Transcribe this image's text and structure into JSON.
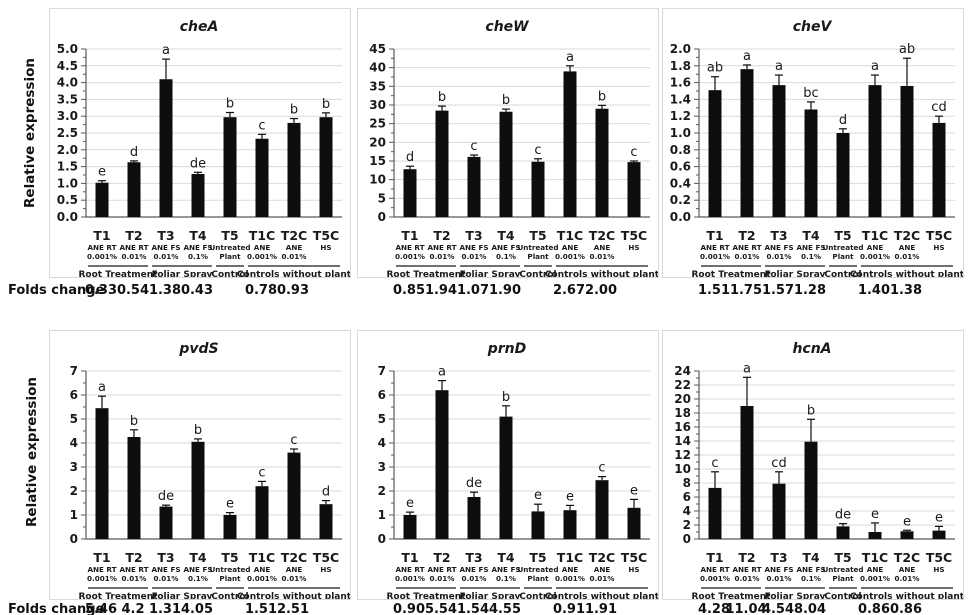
{
  "labels": {
    "ylabel": "Relative expression",
    "folds_change": "Folds change"
  },
  "categories": [
    "T1",
    "T2",
    "T3",
    "T4",
    "T5",
    "T1C",
    "T2C",
    "T5C"
  ],
  "treatment_sublabels": [
    [
      "ANE RT",
      "0.001%"
    ],
    [
      "ANE RT",
      "0.01%"
    ],
    [
      "ANE FS",
      "0.01%"
    ],
    [
      "ANE FS",
      "0.1%"
    ],
    [
      "Untreated",
      "Plant"
    ],
    [
      "ANE",
      "0.001%"
    ],
    [
      "ANE",
      "0.01%"
    ],
    [
      "HS",
      ""
    ]
  ],
  "groups": [
    {
      "label": "Root Treatment",
      "start": 0,
      "end": 1
    },
    {
      "label": "Foliar Spray",
      "start": 2,
      "end": 3
    },
    {
      "label": "Control",
      "start": 4,
      "end": 4
    },
    {
      "label": "Controls without plant",
      "start": 5,
      "end": 7
    }
  ],
  "colors": {
    "bar": "#0d0d0d",
    "grid": "#d9d9d9",
    "axis": "#595959",
    "text": "#1a1a1a",
    "group_line": "#404040",
    "panel_border": "#d9d9d9"
  },
  "chart_data": [
    {
      "type": "bar",
      "title": "cheA",
      "xlabel": "",
      "ylabel": "Relative expression",
      "ylim": [
        0,
        5
      ],
      "ystep": 0.5,
      "ydecimals": 1,
      "grid": true,
      "values": [
        1.02,
        1.63,
        4.1,
        1.28,
        2.97,
        2.33,
        2.8,
        2.97
      ],
      "errors": [
        0.06,
        0.04,
        0.6,
        0.05,
        0.14,
        0.13,
        0.13,
        0.13
      ],
      "letters": [
        "e",
        "d",
        "a",
        "de",
        "b",
        "c",
        "b",
        "b"
      ],
      "folds_change": [
        "0.33",
        "0.54",
        "1.38",
        "0.43",
        "",
        "0.78",
        "0.93",
        ""
      ]
    },
    {
      "type": "bar",
      "title": "cheW",
      "xlabel": "",
      "ylabel": "Relative expression",
      "ylim": [
        0,
        45
      ],
      "ystep": 5,
      "ydecimals": 0,
      "grid": true,
      "values": [
        12.8,
        28.5,
        16.1,
        28.2,
        14.8,
        39.0,
        29.0,
        14.7
      ],
      "errors": [
        0.8,
        1.2,
        0.5,
        0.7,
        0.8,
        1.5,
        0.9,
        0.3
      ],
      "letters": [
        "d",
        "b",
        "c",
        "b",
        "c",
        "a",
        "b",
        "c"
      ],
      "folds_change": [
        "0.85",
        "1.94",
        "1.07",
        "1.90",
        "",
        "2.67",
        "2.00",
        ""
      ]
    },
    {
      "type": "bar",
      "title": "cheV",
      "xlabel": "",
      "ylabel": "Relative expression",
      "ylim": [
        0,
        2
      ],
      "ystep": 0.2,
      "ydecimals": 1,
      "grid": true,
      "values": [
        1.51,
        1.76,
        1.57,
        1.28,
        1.0,
        1.57,
        1.56,
        1.12
      ],
      "errors": [
        0.16,
        0.05,
        0.12,
        0.09,
        0.05,
        0.12,
        0.33,
        0.08
      ],
      "letters": [
        "ab",
        "a",
        "a",
        "bc",
        "d",
        "a",
        "ab",
        "cd"
      ],
      "folds_change": [
        "1.51",
        "1.75",
        "1.57",
        "1.28",
        "",
        "1.40",
        "1.38",
        ""
      ]
    },
    {
      "type": "bar",
      "title": "pvdS",
      "xlabel": "",
      "ylabel": "Relative expression",
      "ylim": [
        0,
        7
      ],
      "ystep": 1,
      "ydecimals": 0,
      "grid": true,
      "values": [
        5.45,
        4.25,
        1.35,
        4.05,
        1.0,
        2.2,
        3.6,
        1.45
      ],
      "errors": [
        0.5,
        0.3,
        0.06,
        0.12,
        0.1,
        0.2,
        0.15,
        0.15
      ],
      "letters": [
        "a",
        "b",
        "de",
        "b",
        "e",
        "c",
        "c",
        "d"
      ],
      "folds_change": [
        "5.46",
        "4.2",
        "1.31",
        "4.05",
        "",
        "1.51",
        "2.51",
        ""
      ]
    },
    {
      "type": "bar",
      "title": "prnD",
      "xlabel": "",
      "ylabel": "Relative expression",
      "ylim": [
        0,
        7
      ],
      "ystep": 1,
      "ydecimals": 0,
      "grid": true,
      "values": [
        1.0,
        6.2,
        1.75,
        5.1,
        1.15,
        1.2,
        2.45,
        1.3
      ],
      "errors": [
        0.12,
        0.4,
        0.2,
        0.45,
        0.3,
        0.2,
        0.15,
        0.35
      ],
      "letters": [
        "e",
        "a",
        "de",
        "b",
        "e",
        "e",
        "c",
        "e"
      ],
      "folds_change": [
        "0.90",
        "5.54",
        "1.54",
        "4.55",
        "",
        "0.91",
        "1.91",
        ""
      ]
    },
    {
      "type": "bar",
      "title": "hcnA",
      "xlabel": "",
      "ylabel": "Relative expression",
      "ylim": [
        0,
        24
      ],
      "ystep": 2,
      "ydecimals": 0,
      "grid": true,
      "values": [
        7.3,
        19.0,
        7.9,
        13.9,
        1.8,
        1.0,
        1.1,
        1.2
      ],
      "errors": [
        2.3,
        4.1,
        1.7,
        3.2,
        0.4,
        1.3,
        0.15,
        0.6
      ],
      "letters": [
        "c",
        "a",
        "cd",
        "b",
        "de",
        "e",
        "e",
        "e"
      ],
      "folds_change": [
        "4.28",
        "11.04",
        "4.54",
        "8.04",
        "",
        "0.86",
        "0.86",
        ""
      ]
    }
  ]
}
